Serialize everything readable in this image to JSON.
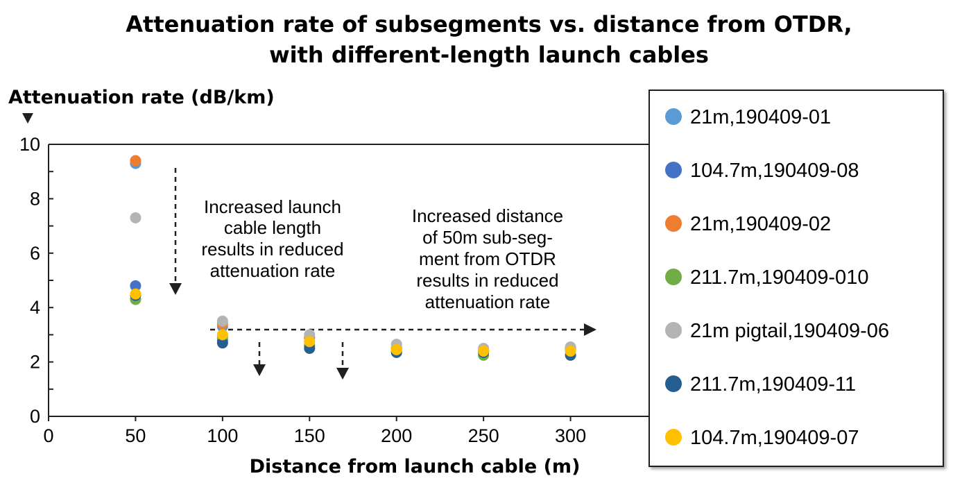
{
  "chart_data": {
    "type": "scatter",
    "title_lines": [
      "Attenuation rate of subsegments vs. distance from OTDR,",
      "with different-length launch cables"
    ],
    "xlabel": "Distance from launch cable (m)",
    "ylabel": "Attenuation rate (dB/km)",
    "xlim": [
      0,
      350
    ],
    "ylim": [
      0,
      10
    ],
    "xticks": [
      "0",
      "50",
      "100",
      "150",
      "200",
      "250",
      "300"
    ],
    "yticks": [
      "0",
      "2",
      "4",
      "6",
      "8",
      "10"
    ],
    "grid": false,
    "legend_position": "right",
    "x": [
      50,
      100,
      150,
      200,
      250,
      300
    ],
    "series": [
      {
        "name": "21m,190409-01",
        "color": "#5b9bd5",
        "values": [
          9.3,
          3.3,
          2.9,
          2.5,
          2.4,
          2.5
        ]
      },
      {
        "name": "104.7m,190409-08",
        "color": "#4472c4",
        "values": [
          4.8,
          2.8,
          2.6,
          2.4,
          2.4,
          2.4
        ]
      },
      {
        "name": "21m,190409-02",
        "color": "#ed7d31",
        "values": [
          9.4,
          3.4,
          2.9,
          2.5,
          2.4,
          2.5
        ]
      },
      {
        "name": "211.7m,190409-010",
        "color": "#70ad47",
        "values": [
          4.3,
          2.9,
          2.6,
          2.5,
          2.25,
          2.5
        ]
      },
      {
        "name": "21m pigtail,190409-06",
        "color": "#b4b4b4",
        "values": [
          7.3,
          3.5,
          3.0,
          2.65,
          2.5,
          2.55
        ]
      },
      {
        "name": "211.7m,190409-11",
        "color": "#255e91",
        "values": [
          4.45,
          2.7,
          2.5,
          2.35,
          2.35,
          2.25
        ]
      },
      {
        "name": "104.7m,190409-07",
        "color": "#ffc000",
        "values": [
          4.5,
          3.0,
          2.75,
          2.45,
          2.4,
          2.4
        ]
      }
    ],
    "annotations": [
      {
        "lines": [
          "Increased launch",
          "cable length",
          "results in reduced",
          "attenuation rate"
        ]
      },
      {
        "lines": [
          "Increased distance",
          "of 50m sub-seg-",
          "ment from OTDR",
          "results in reduced",
          "attenuation rate"
        ]
      }
    ]
  }
}
